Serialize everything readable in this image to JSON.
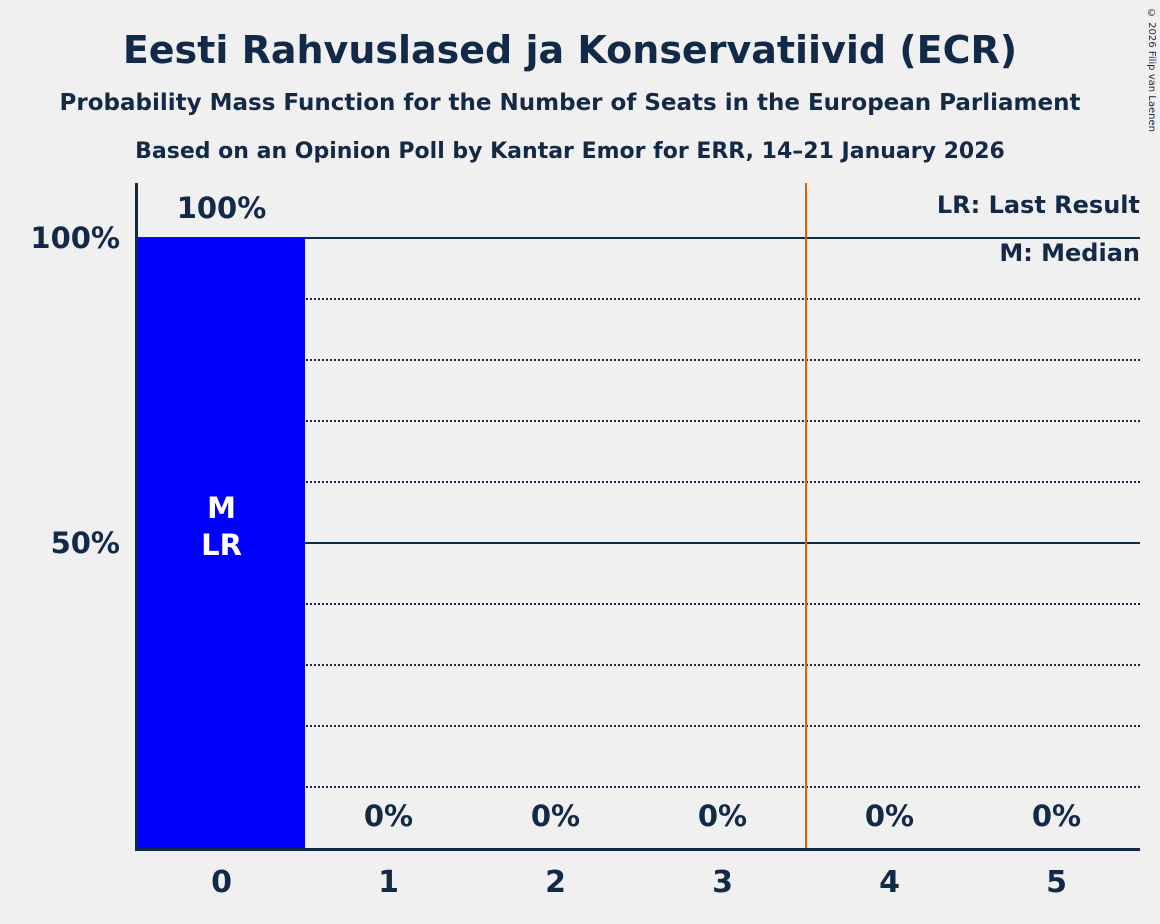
{
  "title": "Eesti Rahvuslased ja Konservatiivid (ECR)",
  "subtitle1": "Probability Mass Function for the Number of Seats in the European Parliament",
  "subtitle2": "Based on an Opinion Poll by Kantar Emor for ERR, 14–21 January 2026",
  "copyright": "© 2026 Filip van Laenen",
  "legend": {
    "lr": "LR: Last Result",
    "m": "M: Median"
  },
  "colors": {
    "bar": "#0000ff",
    "text": "#122a47",
    "marker_line": "#e06000",
    "background": "#f0f0f0",
    "bar_annotation_text": "#ffffff"
  },
  "chart_data": {
    "type": "bar",
    "title": "Eesti Rahvuslased ja Konservatiivid (ECR)",
    "subtitle": "Probability Mass Function for the Number of Seats in the European Parliament",
    "source_line": "Based on an Opinion Poll by Kantar Emor for ERR, 14–21 January 2026",
    "categories": [
      "0",
      "1",
      "2",
      "3",
      "4",
      "5"
    ],
    "values": [
      100,
      0,
      0,
      0,
      0,
      0
    ],
    "value_labels": [
      "100%",
      "0%",
      "0%",
      "0%",
      "0%",
      "0%"
    ],
    "xlabel": "",
    "ylabel": "",
    "ylim": [
      0,
      100
    ],
    "y_ticks": [
      {
        "value": 100,
        "label": "100%"
      },
      {
        "value": 50,
        "label": "50%"
      }
    ],
    "solid_gridlines": [
      100,
      50
    ],
    "dotted_gridlines": [
      90,
      80,
      70,
      60,
      40,
      30,
      20,
      10
    ],
    "median_seats": 0,
    "last_result_seats": 0,
    "marker_line_position": 3.5,
    "bar_annotations": [
      {
        "category_index": 0,
        "lines": [
          "M",
          "LR"
        ]
      }
    ],
    "legend_entries": [
      "LR: Last Result",
      "M: Median"
    ],
    "legend_position": "top-right",
    "grid": "horizontal-dotted"
  }
}
